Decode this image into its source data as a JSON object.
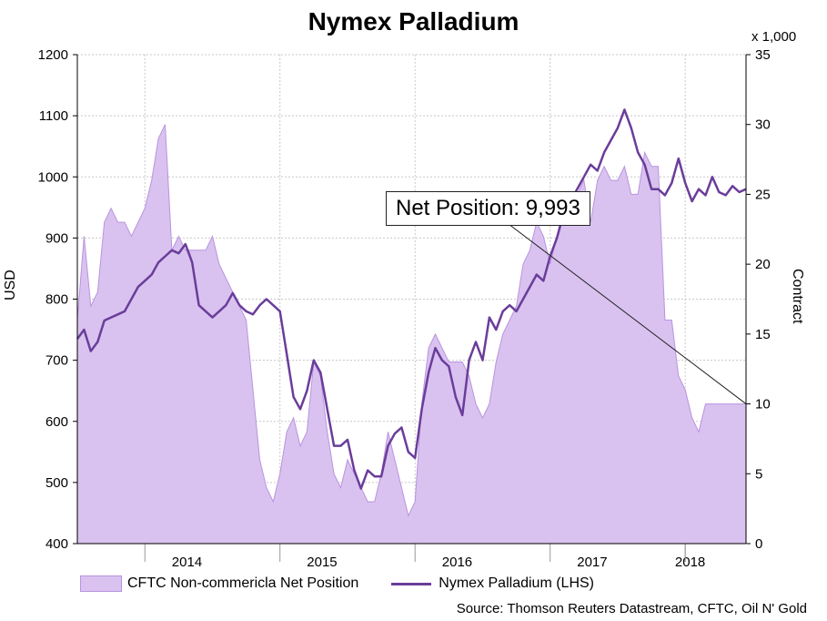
{
  "chart_data": {
    "type": "line",
    "title": "Nymex Palladium",
    "ylabel": "USD",
    "y2label": "Contract",
    "y2_unit": "x 1,000",
    "ylim": [
      400,
      1200
    ],
    "y2lim": [
      0,
      35
    ],
    "yticks": [
      "400",
      "500",
      "600",
      "700",
      "800",
      "900",
      "1000",
      "1100",
      "1200"
    ],
    "y2ticks": [
      "0",
      "5",
      "10",
      "15",
      "20",
      "25",
      "30",
      "35"
    ],
    "xticks": [
      "2014",
      "2015",
      "2016",
      "2017",
      "2018"
    ],
    "xlim": [
      2013.5,
      2018.45
    ],
    "grid": true,
    "legend_position": "bottom",
    "annotation": "Net Position: 9,993",
    "source": "Source: Thomson Reuters Datastream, CFTC, Oil N' Gold",
    "series": [
      {
        "name": "CFTC Non-commericla Net Position",
        "kind": "area",
        "axis": "right",
        "color": "#d9c2ef",
        "edge_color": "#b993e0",
        "x": [
          2013.5,
          2013.55,
          2013.6,
          2013.65,
          2013.7,
          2013.75,
          2013.8,
          2013.85,
          2013.9,
          2013.95,
          2014.0,
          2014.05,
          2014.1,
          2014.15,
          2014.2,
          2014.25,
          2014.3,
          2014.35,
          2014.4,
          2014.45,
          2014.5,
          2014.55,
          2014.6,
          2014.65,
          2014.7,
          2014.75,
          2014.8,
          2014.85,
          2014.9,
          2014.95,
          2015.0,
          2015.05,
          2015.1,
          2015.15,
          2015.2,
          2015.25,
          2015.3,
          2015.35,
          2015.4,
          2015.45,
          2015.5,
          2015.55,
          2015.6,
          2015.65,
          2015.7,
          2015.75,
          2015.8,
          2015.85,
          2015.9,
          2015.95,
          2016.0,
          2016.05,
          2016.1,
          2016.15,
          2016.2,
          2016.25,
          2016.3,
          2016.35,
          2016.4,
          2016.45,
          2016.5,
          2016.55,
          2016.6,
          2016.65,
          2016.7,
          2016.75,
          2016.8,
          2016.85,
          2016.9,
          2016.95,
          2017.0,
          2017.05,
          2017.1,
          2017.15,
          2017.2,
          2017.25,
          2017.3,
          2017.35,
          2017.4,
          2017.45,
          2017.5,
          2017.55,
          2017.6,
          2017.65,
          2017.7,
          2017.75,
          2017.8,
          2017.85,
          2017.9,
          2017.95,
          2018.0,
          2018.05,
          2018.1,
          2018.15,
          2018.2,
          2018.25,
          2018.3,
          2018.35,
          2018.4,
          2018.45
        ],
        "values": [
          16,
          22,
          17,
          18,
          23,
          24,
          23,
          23,
          22,
          23,
          24,
          26,
          29,
          30,
          21,
          22,
          21,
          21,
          21,
          21,
          22,
          20,
          19,
          18,
          17,
          16,
          11,
          6,
          4,
          3,
          5,
          8,
          9,
          7,
          8,
          13,
          12,
          8,
          5,
          4,
          6,
          5,
          4,
          3,
          3,
          5,
          8,
          6,
          4,
          2,
          3,
          10,
          14,
          15,
          14,
          13,
          13,
          13,
          12,
          10,
          9,
          10,
          13,
          15,
          16,
          17,
          20,
          21,
          23,
          22,
          20,
          22,
          24,
          24,
          25,
          26,
          23,
          26,
          27,
          26,
          26,
          27,
          25,
          25,
          28,
          27,
          27,
          16,
          16,
          12,
          11,
          9,
          8,
          10,
          10,
          10,
          10,
          10,
          10,
          10
        ]
      },
      {
        "name": "Nymex Palladium (LHS)",
        "kind": "line",
        "axis": "left",
        "color": "#6a3d9a",
        "x": [
          2013.5,
          2013.55,
          2013.6,
          2013.65,
          2013.7,
          2013.75,
          2013.8,
          2013.85,
          2013.9,
          2013.95,
          2014.0,
          2014.05,
          2014.1,
          2014.15,
          2014.2,
          2014.25,
          2014.3,
          2014.35,
          2014.4,
          2014.45,
          2014.5,
          2014.55,
          2014.6,
          2014.65,
          2014.7,
          2014.75,
          2014.8,
          2014.85,
          2014.9,
          2014.95,
          2015.0,
          2015.05,
          2015.1,
          2015.15,
          2015.2,
          2015.25,
          2015.3,
          2015.35,
          2015.4,
          2015.45,
          2015.5,
          2015.55,
          2015.6,
          2015.65,
          2015.7,
          2015.75,
          2015.8,
          2015.85,
          2015.9,
          2015.95,
          2016.0,
          2016.05,
          2016.1,
          2016.15,
          2016.2,
          2016.25,
          2016.3,
          2016.35,
          2016.4,
          2016.45,
          2016.5,
          2016.55,
          2016.6,
          2016.65,
          2016.7,
          2016.75,
          2016.8,
          2016.85,
          2016.9,
          2016.95,
          2017.0,
          2017.05,
          2017.1,
          2017.15,
          2017.2,
          2017.25,
          2017.3,
          2017.35,
          2017.4,
          2017.45,
          2017.5,
          2017.55,
          2017.6,
          2017.65,
          2017.7,
          2017.75,
          2017.8,
          2017.85,
          2017.9,
          2017.95,
          2018.0,
          2018.05,
          2018.1,
          2018.15,
          2018.2,
          2018.25,
          2018.3,
          2018.35,
          2018.4,
          2018.45
        ],
        "values": [
          735,
          750,
          715,
          730,
          765,
          770,
          775,
          780,
          800,
          820,
          830,
          840,
          860,
          870,
          880,
          875,
          890,
          860,
          790,
          780,
          770,
          780,
          790,
          810,
          790,
          780,
          775,
          790,
          800,
          790,
          780,
          710,
          640,
          620,
          650,
          700,
          680,
          620,
          560,
          560,
          570,
          520,
          490,
          520,
          510,
          510,
          560,
          580,
          590,
          550,
          540,
          620,
          680,
          720,
          700,
          690,
          640,
          610,
          700,
          730,
          700,
          770,
          750,
          780,
          790,
          780,
          800,
          820,
          840,
          830,
          870,
          900,
          940,
          960,
          980,
          1000,
          1020,
          1010,
          1040,
          1060,
          1080,
          1110,
          1080,
          1040,
          1020,
          980,
          980,
          970,
          990,
          1030,
          990,
          960,
          980,
          970,
          1000,
          975,
          970,
          985,
          975,
          980
        ]
      }
    ]
  }
}
